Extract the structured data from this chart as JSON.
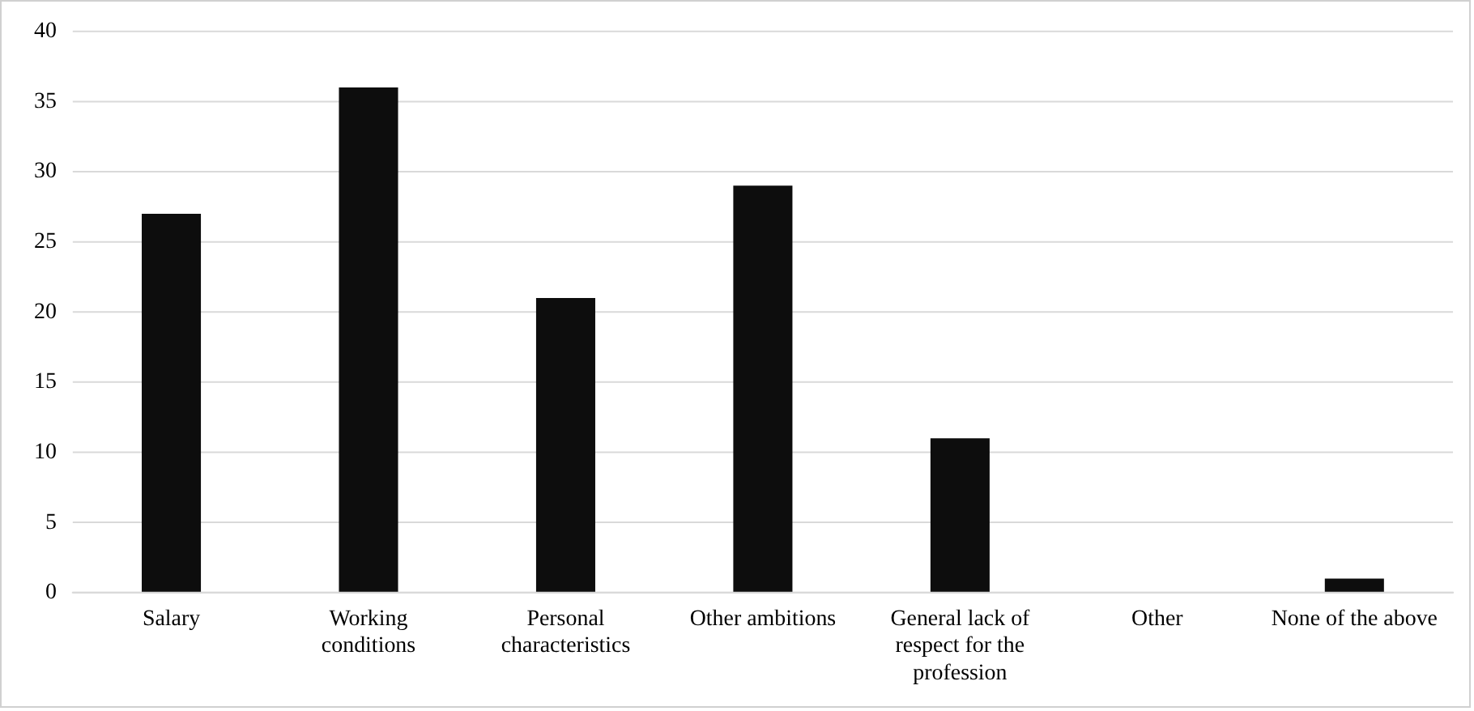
{
  "chart_data": {
    "type": "bar",
    "categories": [
      "Salary",
      "Working conditions",
      "Personal characteristics",
      "Other ambitions",
      "General lack of respect for the profession",
      "Other",
      "None of the above"
    ],
    "values": [
      27,
      36,
      21,
      29,
      11,
      0,
      1
    ],
    "color": "#0d0d0d",
    "ylim": [
      0,
      40
    ],
    "yticks": [
      0,
      5,
      10,
      15,
      20,
      25,
      30,
      35,
      40
    ],
    "grid": "y",
    "legend": false
  }
}
